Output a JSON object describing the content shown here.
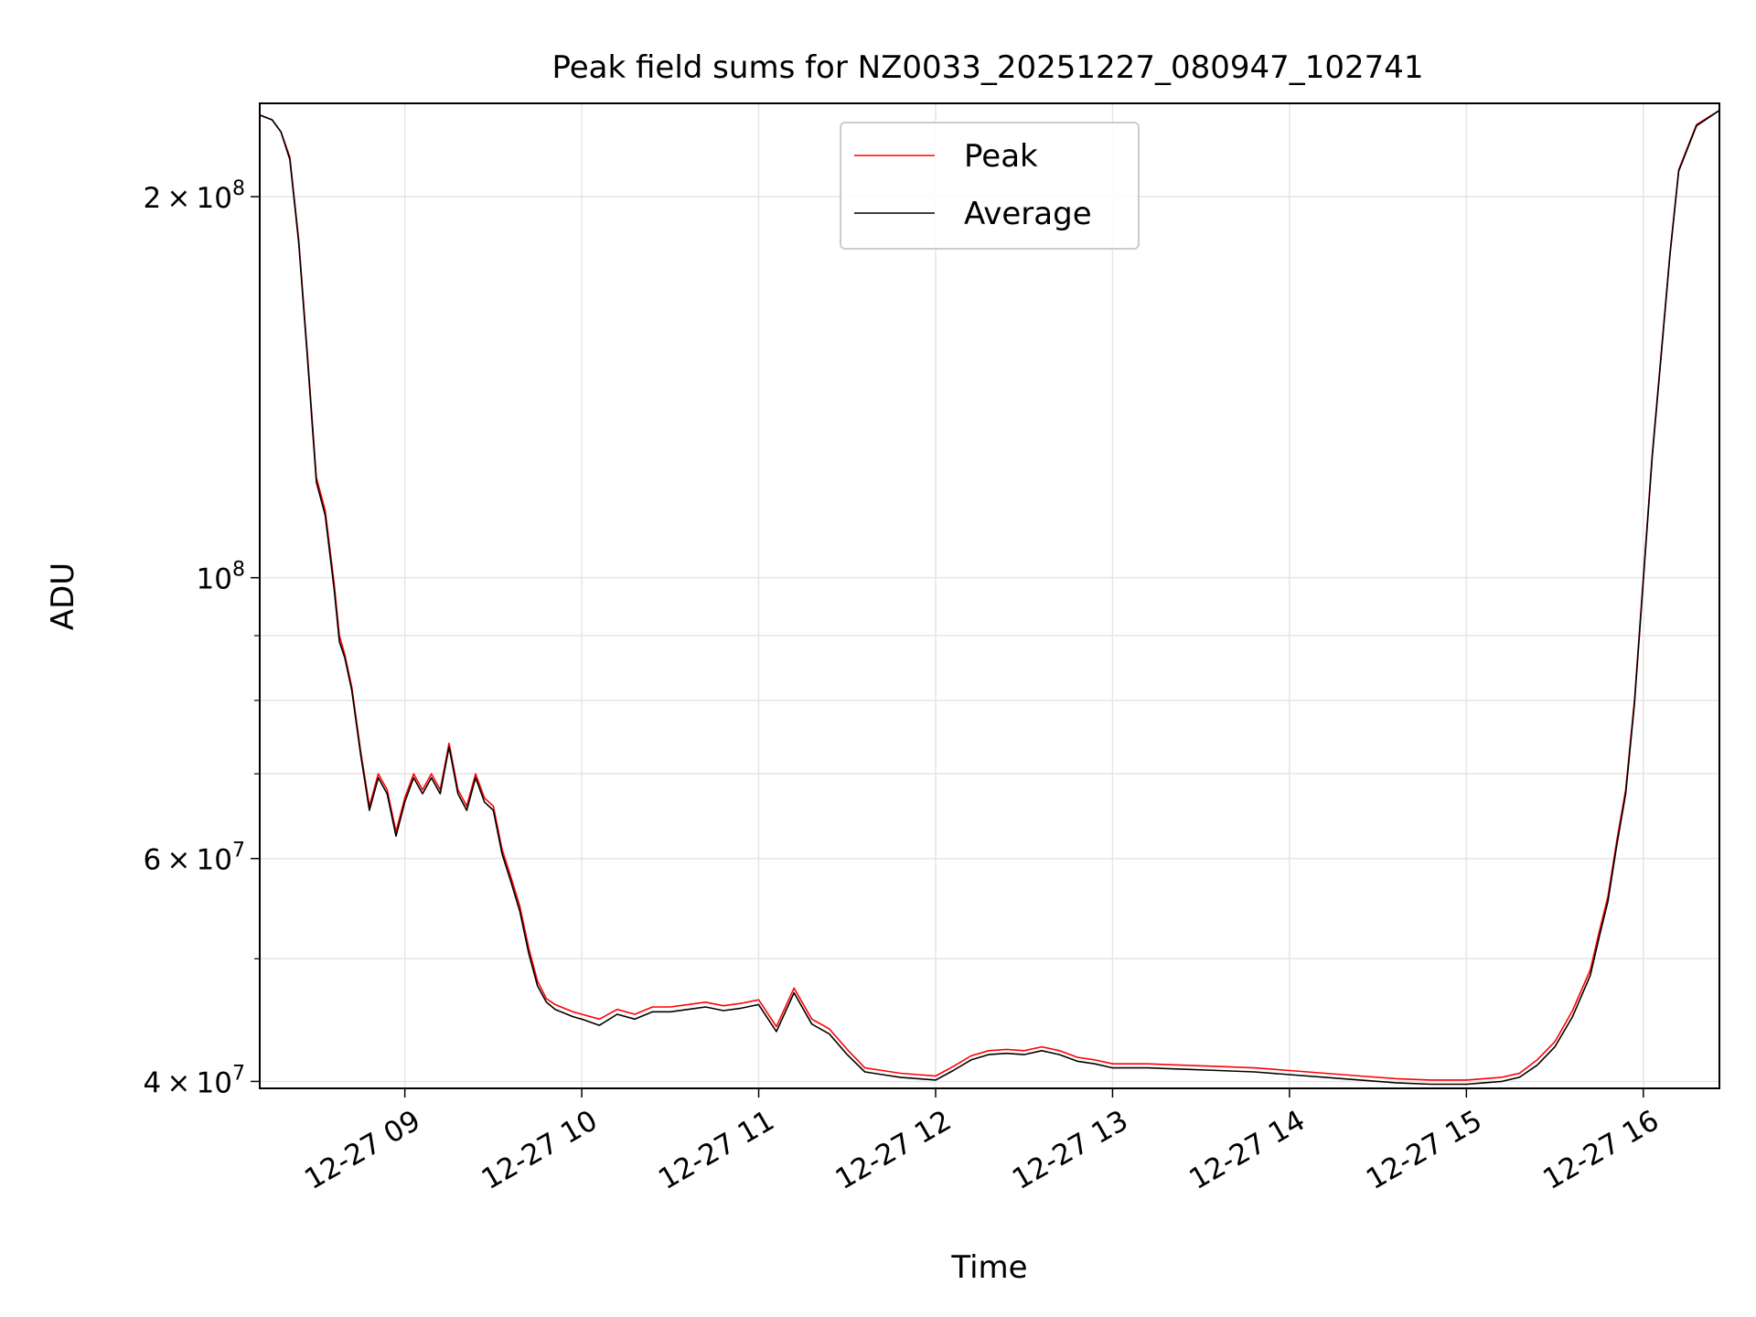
{
  "chart_data": {
    "type": "line",
    "title": "Peak field sums for NZ0033_20251227_080947_102741",
    "xlabel": "Time",
    "ylabel": "ADU",
    "x_unit": "hours since 12-27 00:00",
    "xlim": [
      8.18,
      16.43
    ],
    "ylim": [
      39500000,
      237000000
    ],
    "yscale": "log",
    "grid": true,
    "legend_position": "upper center",
    "x_ticks": [
      {
        "value": 9,
        "label": "12-27 09"
      },
      {
        "value": 10,
        "label": "12-27 10"
      },
      {
        "value": 11,
        "label": "12-27 11"
      },
      {
        "value": 12,
        "label": "12-27 12"
      },
      {
        "value": 13,
        "label": "12-27 13"
      },
      {
        "value": 14,
        "label": "12-27 14"
      },
      {
        "value": 15,
        "label": "12-27 15"
      },
      {
        "value": 16,
        "label": "12-27 16"
      }
    ],
    "y_major_ticks": [
      {
        "value": 40000000,
        "mantissa": "4",
        "exponent": "7"
      },
      {
        "value": 60000000,
        "mantissa": "6",
        "exponent": "7"
      },
      {
        "value": 100000000,
        "mantissa": "",
        "exponent": "8"
      },
      {
        "value": 200000000,
        "mantissa": "2",
        "exponent": "8"
      }
    ],
    "y_minor_ticks": [
      50000000,
      70000000,
      80000000,
      90000000
    ],
    "series": [
      {
        "name": "Peak",
        "color": "#ff0000",
        "x": [
          8.18,
          8.25,
          8.3,
          8.35,
          8.4,
          8.45,
          8.5,
          8.55,
          8.6,
          8.63,
          8.66,
          8.7,
          8.75,
          8.8,
          8.85,
          8.9,
          8.95,
          9.0,
          9.05,
          9.1,
          9.15,
          9.2,
          9.25,
          9.3,
          9.35,
          9.4,
          9.45,
          9.5,
          9.55,
          9.6,
          9.65,
          9.7,
          9.75,
          9.8,
          9.85,
          9.9,
          9.95,
          10.0,
          10.1,
          10.2,
          10.3,
          10.4,
          10.5,
          10.6,
          10.7,
          10.8,
          10.9,
          11.0,
          11.1,
          11.2,
          11.3,
          11.4,
          11.5,
          11.6,
          11.7,
          11.8,
          11.9,
          12.0,
          12.1,
          12.2,
          12.3,
          12.4,
          12.5,
          12.6,
          12.7,
          12.8,
          12.9,
          13.0,
          13.2,
          13.4,
          13.6,
          13.8,
          14.0,
          14.2,
          14.4,
          14.6,
          14.8,
          15.0,
          15.1,
          15.2,
          15.3,
          15.4,
          15.5,
          15.6,
          15.7,
          15.75,
          15.8,
          15.85,
          15.9,
          15.95,
          16.0,
          16.05,
          16.1,
          16.15,
          16.2,
          16.3,
          16.43
        ],
        "values": [
          232000000,
          230000000,
          225000000,
          215000000,
          185000000,
          150000000,
          120000000,
          113000000,
          99000000,
          90000000,
          87000000,
          82000000,
          73000000,
          66000000,
          70000000,
          68000000,
          63000000,
          67000000,
          70000000,
          68000000,
          70000000,
          68000000,
          74000000,
          68000000,
          66000000,
          70000000,
          67000000,
          66000000,
          61000000,
          58000000,
          55000000,
          51000000,
          48000000,
          46500000,
          46000000,
          45700000,
          45400000,
          45200000,
          44800000,
          45600000,
          45200000,
          45800000,
          45800000,
          46000000,
          46200000,
          45900000,
          46100000,
          46400000,
          44200000,
          47400000,
          44800000,
          44000000,
          42400000,
          41000000,
          40800000,
          40600000,
          40500000,
          40400000,
          41100000,
          41900000,
          42300000,
          42400000,
          42300000,
          42600000,
          42300000,
          41800000,
          41600000,
          41300000,
          41300000,
          41200000,
          41100000,
          41000000,
          40800000,
          40600000,
          40400000,
          40200000,
          40100000,
          40100000,
          40200000,
          40300000,
          40600000,
          41600000,
          43000000,
          45500000,
          49000000,
          52500000,
          56000000,
          62000000,
          68000000,
          80000000,
          100000000,
          125000000,
          150000000,
          180000000,
          210000000,
          228000000,
          234000000
        ]
      },
      {
        "name": "Average",
        "color": "#000000",
        "x": [
          8.18,
          8.25,
          8.3,
          8.35,
          8.4,
          8.45,
          8.5,
          8.55,
          8.6,
          8.63,
          8.66,
          8.7,
          8.75,
          8.8,
          8.85,
          8.9,
          8.95,
          9.0,
          9.05,
          9.1,
          9.15,
          9.2,
          9.25,
          9.3,
          9.35,
          9.4,
          9.45,
          9.5,
          9.55,
          9.6,
          9.65,
          9.7,
          9.75,
          9.8,
          9.85,
          9.9,
          9.95,
          10.0,
          10.1,
          10.2,
          10.3,
          10.4,
          10.5,
          10.6,
          10.7,
          10.8,
          10.9,
          11.0,
          11.1,
          11.2,
          11.3,
          11.4,
          11.5,
          11.6,
          11.7,
          11.8,
          11.9,
          12.0,
          12.1,
          12.2,
          12.3,
          12.4,
          12.5,
          12.6,
          12.7,
          12.8,
          12.9,
          13.0,
          13.2,
          13.4,
          13.6,
          13.8,
          14.0,
          14.2,
          14.4,
          14.6,
          14.8,
          15.0,
          15.1,
          15.2,
          15.3,
          15.4,
          15.5,
          15.6,
          15.7,
          15.75,
          15.8,
          15.85,
          15.9,
          15.95,
          16.0,
          16.05,
          16.1,
          16.15,
          16.2,
          16.3,
          16.43
        ],
        "values": [
          232000000,
          230000000,
          225000000,
          214000000,
          184000000,
          149000000,
          119000000,
          112000000,
          98000000,
          89000000,
          86500000,
          81500000,
          72500000,
          65500000,
          69500000,
          67500000,
          62500000,
          66500000,
          69500000,
          67500000,
          69500000,
          67500000,
          73500000,
          67500000,
          65500000,
          69500000,
          66500000,
          65500000,
          60500000,
          57500000,
          54500000,
          50500000,
          47600000,
          46200000,
          45600000,
          45300000,
          45000000,
          44800000,
          44300000,
          45200000,
          44800000,
          45400000,
          45400000,
          45600000,
          45800000,
          45500000,
          45700000,
          46000000,
          43800000,
          47000000,
          44400000,
          43600000,
          42000000,
          40700000,
          40500000,
          40300000,
          40200000,
          40100000,
          40800000,
          41600000,
          42000000,
          42100000,
          42000000,
          42300000,
          42000000,
          41500000,
          41300000,
          41000000,
          41000000,
          40900000,
          40800000,
          40700000,
          40500000,
          40300000,
          40100000,
          39900000,
          39800000,
          39800000,
          39900000,
          40000000,
          40300000,
          41200000,
          42600000,
          45000000,
          48500000,
          52000000,
          55500000,
          61500000,
          67500000,
          79500000,
          99500000,
          124500000,
          149500000,
          179500000,
          209500000,
          227500000,
          234000000
        ]
      }
    ]
  }
}
